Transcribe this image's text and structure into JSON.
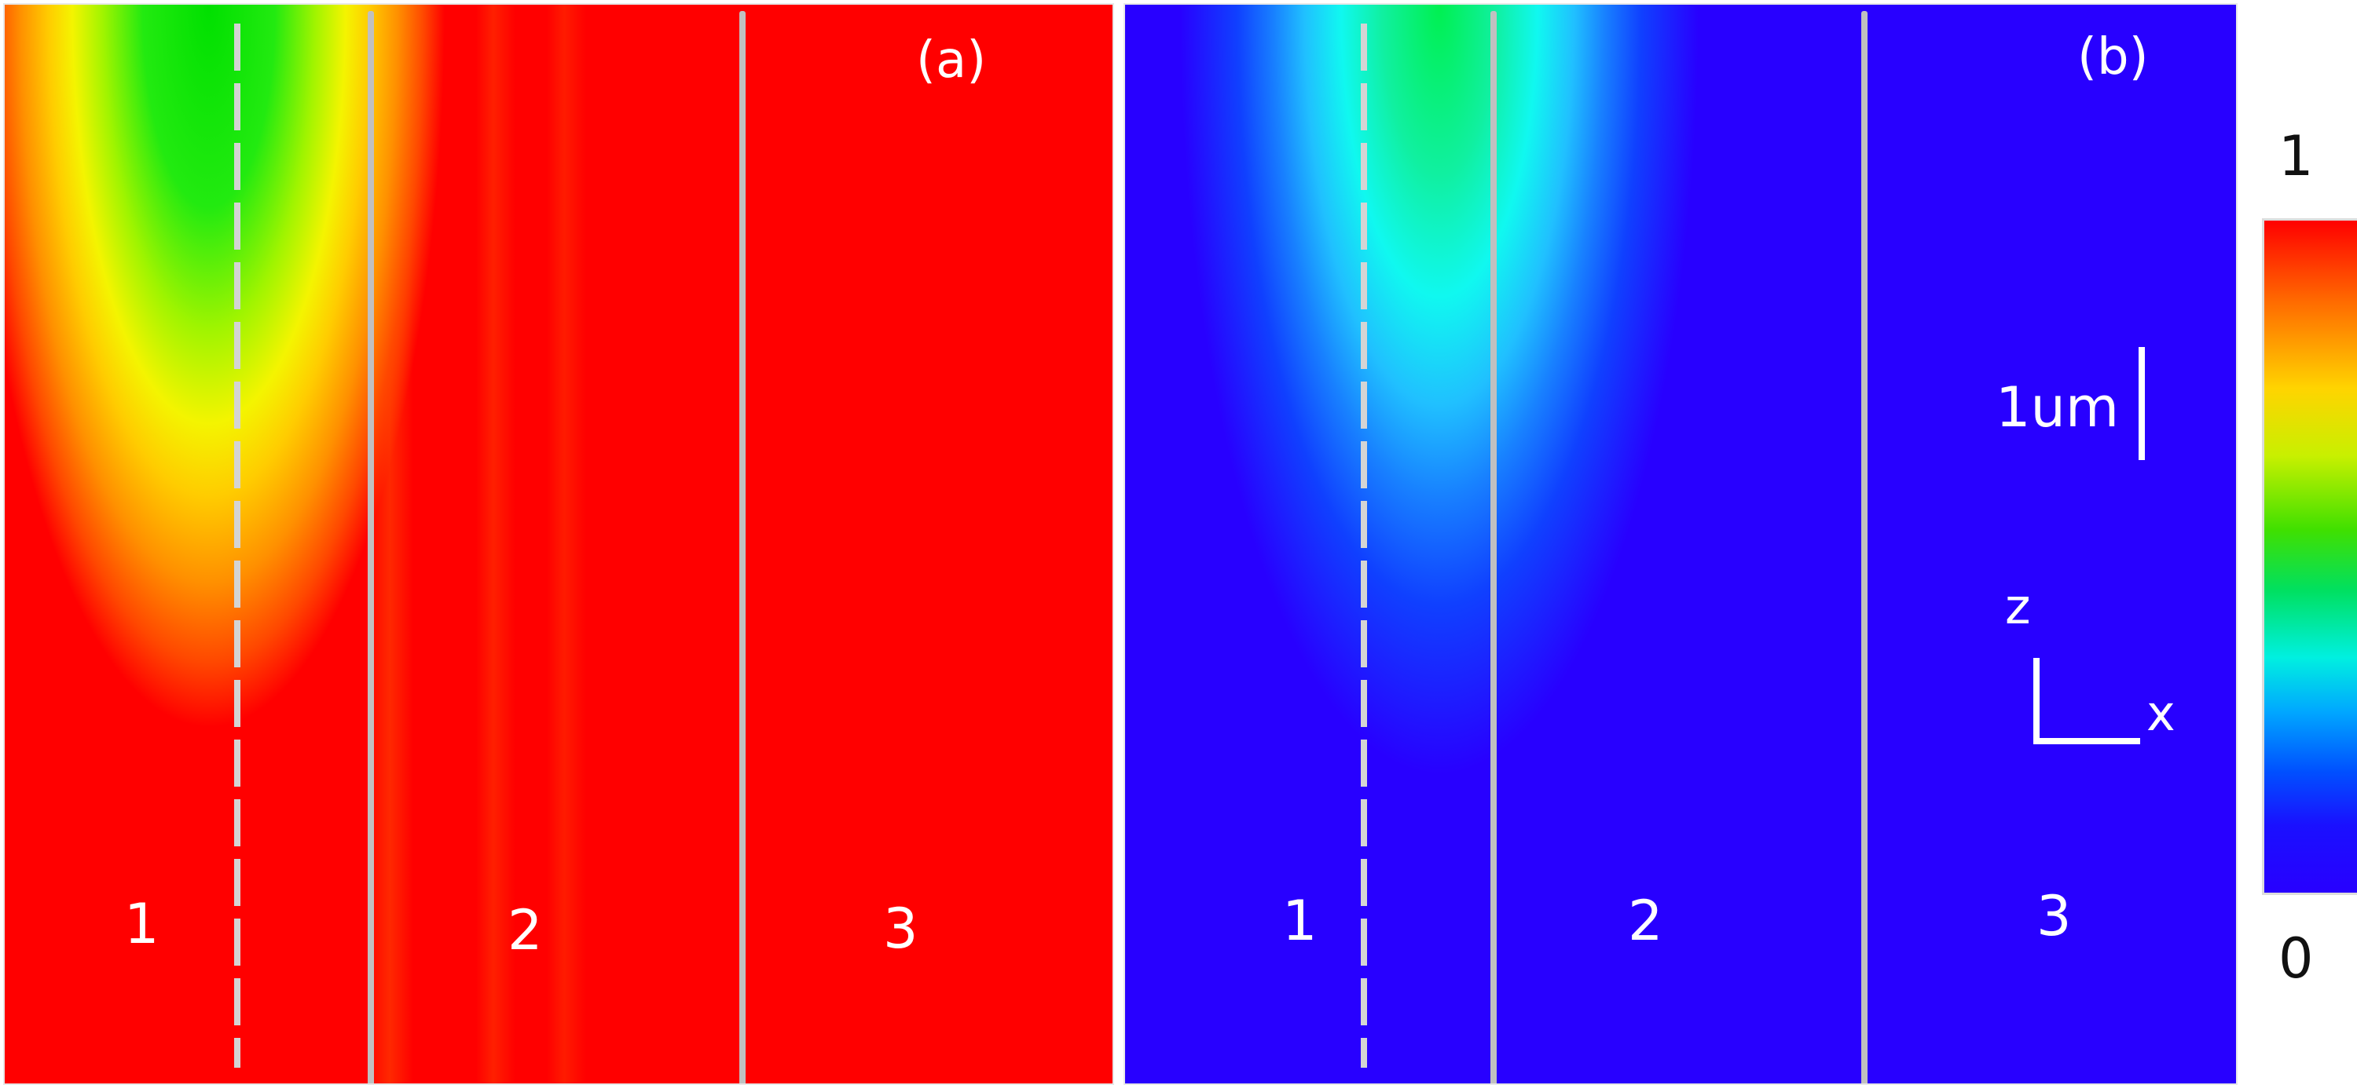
{
  "colors": {
    "panel_a_background": "#ff0000",
    "panel_b_background": "#2800ff",
    "boundary_lines": "#c0c0c0",
    "text": "#ffffff"
  },
  "panel_a": {
    "label": "(a)",
    "regions": [
      "1",
      "2",
      "3"
    ]
  },
  "panel_b": {
    "label": "(b)",
    "regions": [
      "1",
      "2",
      "3"
    ],
    "scale_bar_label": "1um",
    "axis_z": "z",
    "axis_x": "x"
  },
  "colorbar": {
    "max_label": "1",
    "min_label": "0",
    "colormap": "jet"
  }
}
